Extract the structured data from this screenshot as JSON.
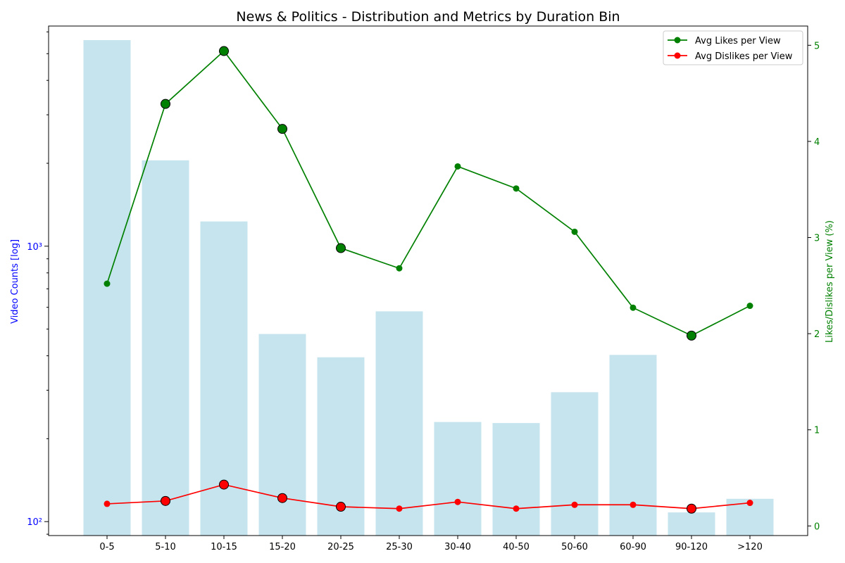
{
  "chart_data": {
    "type": "bar",
    "title": "News & Politics - Distribution and Metrics by Duration Bin",
    "xlabel": "",
    "ylabel_left": "Video Counts [log]",
    "ylabel_right": "Likes/Dislikes per View (%)",
    "left_scale": "log",
    "left_ylim": [
      89,
      6300
    ],
    "left_ticks": [
      {
        "value": 100,
        "label": "10²"
      },
      {
        "value": 1000,
        "label": "10³"
      }
    ],
    "right_ylim": [
      -0.1,
      5.2
    ],
    "right_ticks": [
      0,
      1,
      2,
      3,
      4,
      5
    ],
    "categories": [
      "0-5",
      "5-10",
      "10-15",
      "15-20",
      "20-25",
      "25-30",
      "30-40",
      "40-50",
      "50-60",
      "60-90",
      "90-120",
      ">120"
    ],
    "bars": {
      "name": "Video Counts",
      "values": [
        5600,
        2050,
        1230,
        480,
        395,
        580,
        230,
        228,
        295,
        403,
        108,
        121
      ],
      "color": "#add8e6"
    },
    "series": [
      {
        "name": "Avg Likes per View",
        "axis": "right",
        "color": "#008000",
        "values": [
          2.52,
          4.39,
          4.94,
          4.13,
          2.89,
          2.68,
          3.74,
          3.51,
          3.06,
          2.27,
          1.98,
          2.29
        ],
        "highlighted": [
          false,
          true,
          true,
          true,
          true,
          false,
          false,
          false,
          false,
          false,
          true,
          false
        ]
      },
      {
        "name": "Avg Dislikes per View",
        "axis": "right",
        "color": "#ff0000",
        "values": [
          0.23,
          0.26,
          0.43,
          0.29,
          0.2,
          0.18,
          0.25,
          0.18,
          0.22,
          0.22,
          0.18,
          0.24
        ],
        "highlighted": [
          false,
          true,
          true,
          true,
          true,
          false,
          false,
          false,
          false,
          false,
          true,
          false
        ]
      }
    ],
    "legend": {
      "position": "top-right",
      "entries": [
        "Avg Likes per View",
        "Avg Dislikes per View"
      ]
    },
    "grid": false,
    "colors": {
      "left_axis": "#0000ff",
      "right_axis": "#008000"
    }
  }
}
